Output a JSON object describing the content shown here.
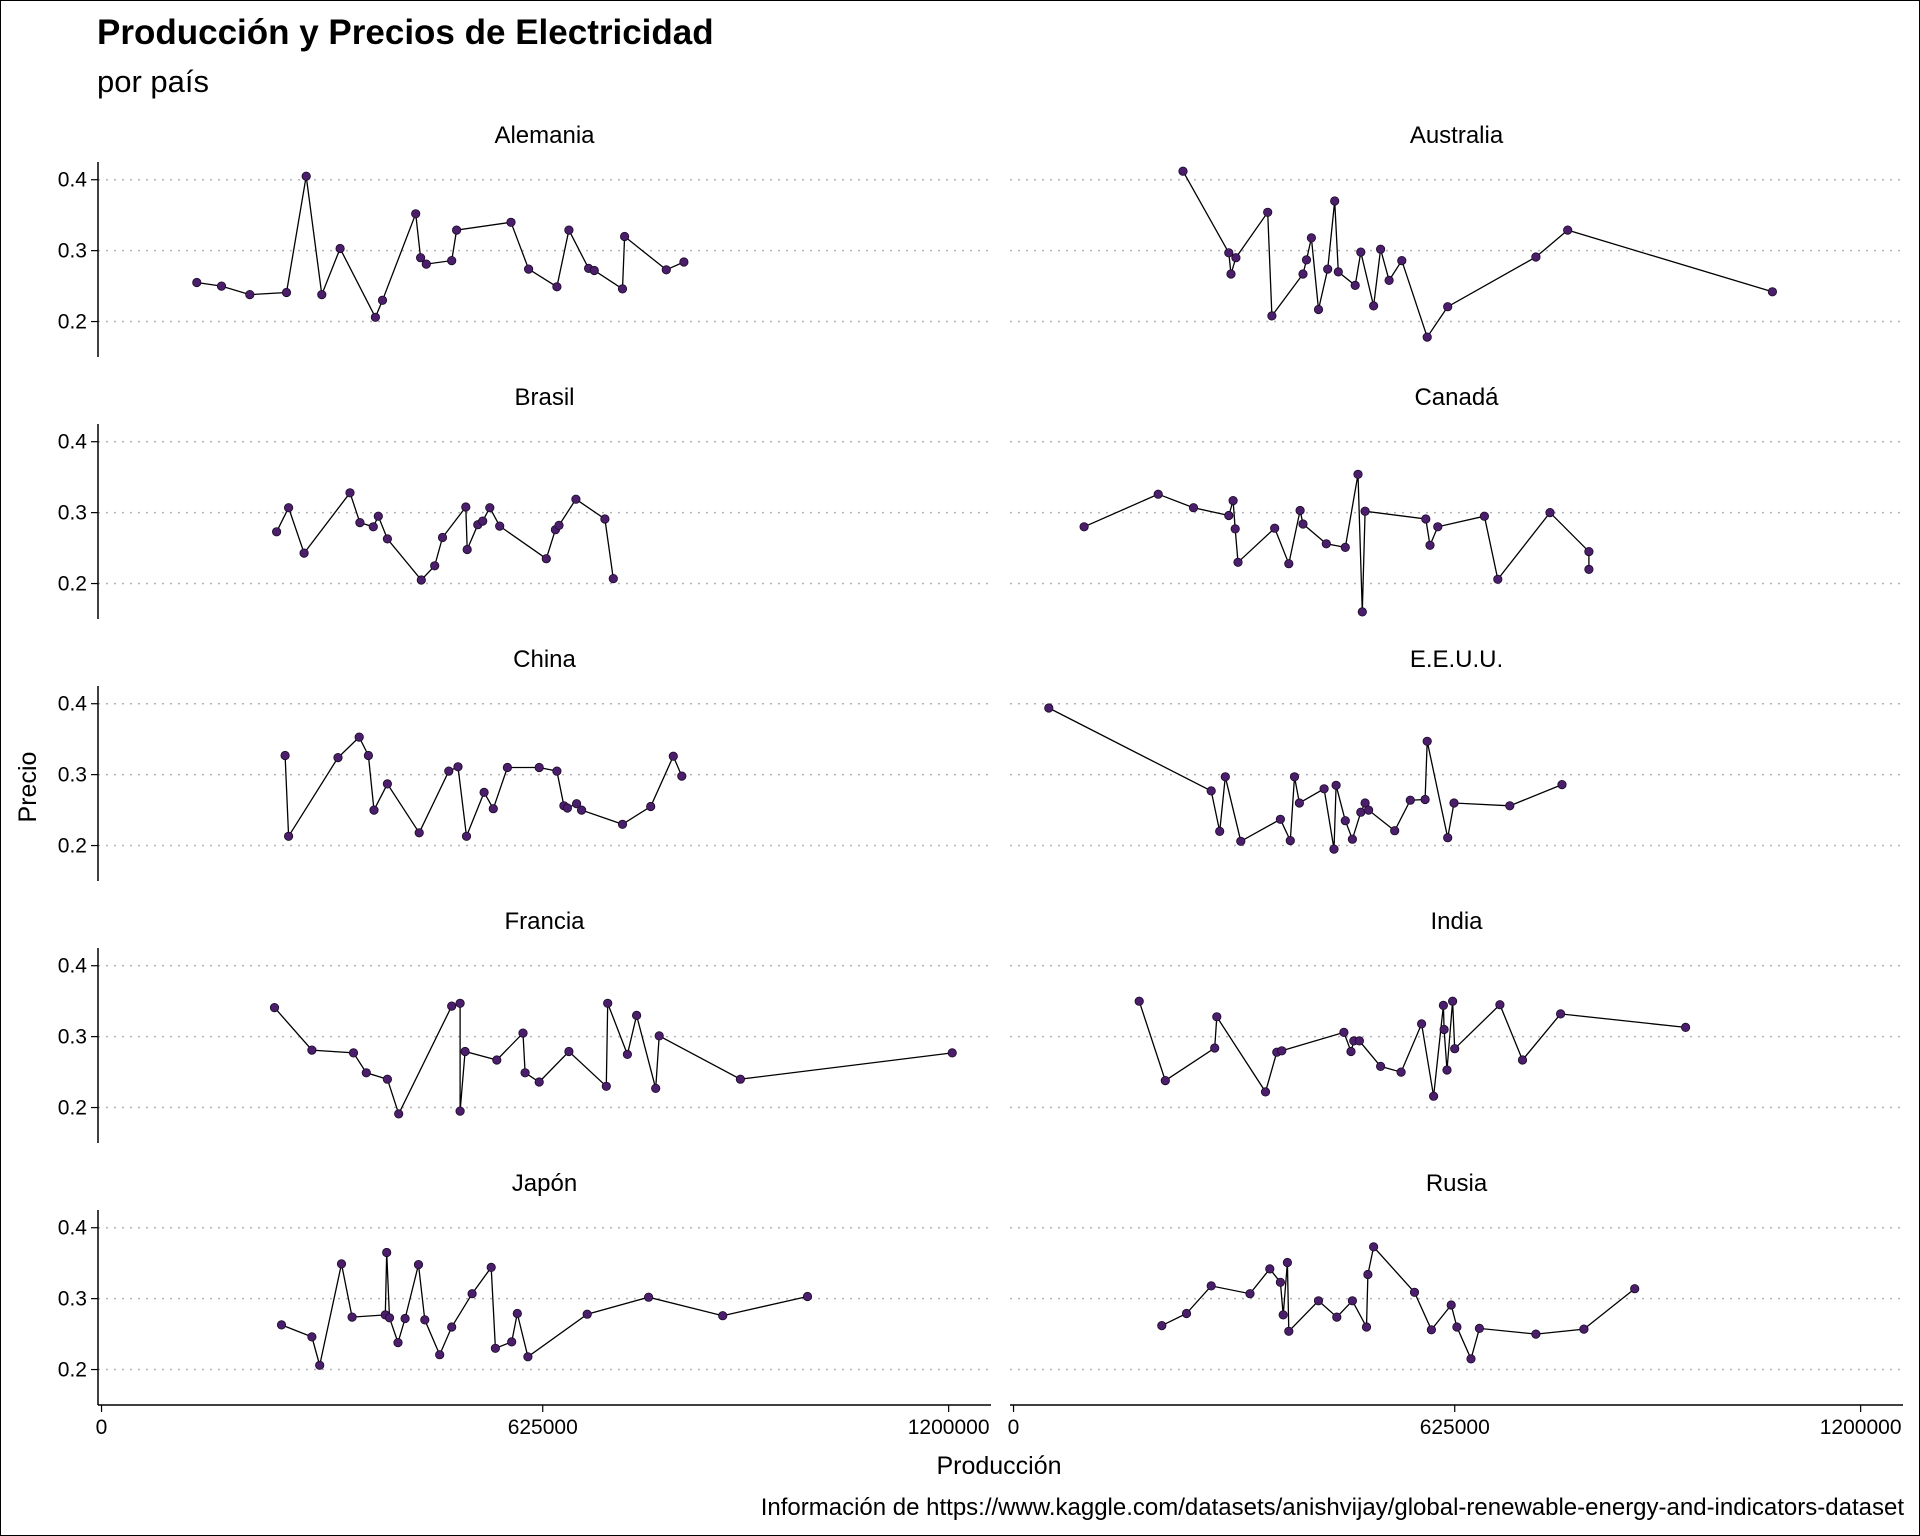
{
  "title": "Producción y Precios de Electricidad",
  "subtitle": "por país",
  "caption": "Información de https://www.kaggle.com/datasets/anishvijay/global-renewable-energy-and-indicators-dataset",
  "chart_data": {
    "type": "line",
    "facet_layout": "5 rows x 2 columns, shared x and y axes",
    "xlabel": "Producción",
    "ylabel": "Precio",
    "x_ticks": [
      0,
      625000,
      1200000
    ],
    "x_tick_labels": [
      "0",
      "625000",
      "1200000"
    ],
    "y_ticks": [
      0.2,
      0.3,
      0.4
    ],
    "y_tick_labels": [
      "0.2",
      "0.3",
      "0.4"
    ],
    "xlim": [
      -5000,
      1260000
    ],
    "ylim": [
      0.15,
      0.425
    ],
    "grid": "horizontal dotted major lines",
    "point_color": "#4B1E6B",
    "line_color": "#000000",
    "panels": [
      {
        "name": "Alemania",
        "points": [
          [
            135000,
            0.255
          ],
          [
            170000,
            0.25
          ],
          [
            210000,
            0.238
          ],
          [
            262000,
            0.241
          ],
          [
            290000,
            0.405
          ],
          [
            312000,
            0.238
          ],
          [
            338000,
            0.303
          ],
          [
            388000,
            0.206
          ],
          [
            398000,
            0.23
          ],
          [
            445000,
            0.352
          ],
          [
            452000,
            0.29
          ],
          [
            460000,
            0.281
          ],
          [
            496000,
            0.286
          ],
          [
            503000,
            0.329
          ],
          [
            580000,
            0.34
          ],
          [
            605000,
            0.274
          ],
          [
            645000,
            0.249
          ],
          [
            662000,
            0.329
          ],
          [
            690000,
            0.275
          ],
          [
            698000,
            0.272
          ],
          [
            738000,
            0.246
          ],
          [
            741000,
            0.32
          ],
          [
            800000,
            0.273
          ],
          [
            825000,
            0.284
          ]
        ]
      },
      {
        "name": "Australia",
        "points": [
          [
            240000,
            0.412
          ],
          [
            305000,
            0.297
          ],
          [
            308000,
            0.267
          ],
          [
            315000,
            0.29
          ],
          [
            360000,
            0.354
          ],
          [
            366000,
            0.208
          ],
          [
            410000,
            0.267
          ],
          [
            415000,
            0.287
          ],
          [
            422000,
            0.318
          ],
          [
            432000,
            0.217
          ],
          [
            445000,
            0.274
          ],
          [
            455000,
            0.37
          ],
          [
            460000,
            0.27
          ],
          [
            484000,
            0.251
          ],
          [
            492000,
            0.298
          ],
          [
            510000,
            0.222
          ],
          [
            520000,
            0.302
          ],
          [
            532000,
            0.258
          ],
          [
            550000,
            0.286
          ],
          [
            586000,
            0.178
          ],
          [
            615000,
            0.221
          ],
          [
            740000,
            0.291
          ],
          [
            785000,
            0.329
          ],
          [
            1075000,
            0.242
          ]
        ]
      },
      {
        "name": "Brasil",
        "points": [
          [
            248000,
            0.273
          ],
          [
            265000,
            0.307
          ],
          [
            287000,
            0.243
          ],
          [
            352000,
            0.328
          ],
          [
            366000,
            0.286
          ],
          [
            385000,
            0.28
          ],
          [
            392000,
            0.295
          ],
          [
            405000,
            0.263
          ],
          [
            453000,
            0.205
          ],
          [
            472000,
            0.225
          ],
          [
            483000,
            0.265
          ],
          [
            516000,
            0.308
          ],
          [
            518000,
            0.248
          ],
          [
            533000,
            0.283
          ],
          [
            540000,
            0.288
          ],
          [
            550000,
            0.307
          ],
          [
            564000,
            0.281
          ],
          [
            630000,
            0.235
          ],
          [
            643000,
            0.276
          ],
          [
            648000,
            0.282
          ],
          [
            672000,
            0.319
          ],
          [
            713000,
            0.291
          ],
          [
            725000,
            0.207
          ]
        ]
      },
      {
        "name": "Canadá",
        "points": [
          [
            100000,
            0.28
          ],
          [
            205000,
            0.326
          ],
          [
            255000,
            0.307
          ],
          [
            305000,
            0.296
          ],
          [
            311000,
            0.317
          ],
          [
            314000,
            0.277
          ],
          [
            318000,
            0.23
          ],
          [
            370000,
            0.278
          ],
          [
            390000,
            0.228
          ],
          [
            406000,
            0.303
          ],
          [
            410000,
            0.284
          ],
          [
            443000,
            0.256
          ],
          [
            470000,
            0.251
          ],
          [
            488000,
            0.354
          ],
          [
            494000,
            0.16
          ],
          [
            498000,
            0.302
          ],
          [
            584000,
            0.291
          ],
          [
            590000,
            0.254
          ],
          [
            601000,
            0.28
          ],
          [
            667000,
            0.295
          ],
          [
            686000,
            0.206
          ],
          [
            760000,
            0.3
          ],
          [
            815000,
            0.245
          ],
          [
            815000,
            0.22
          ]
        ]
      },
      {
        "name": "China",
        "points": [
          [
            260000,
            0.327
          ],
          [
            265000,
            0.213
          ],
          [
            335000,
            0.324
          ],
          [
            365000,
            0.353
          ],
          [
            378000,
            0.327
          ],
          [
            386000,
            0.25
          ],
          [
            405000,
            0.287
          ],
          [
            450000,
            0.218
          ],
          [
            492000,
            0.305
          ],
          [
            505000,
            0.311
          ],
          [
            517000,
            0.213
          ],
          [
            542000,
            0.275
          ],
          [
            555000,
            0.252
          ],
          [
            575000,
            0.31
          ],
          [
            620000,
            0.31
          ],
          [
            645000,
            0.305
          ],
          [
            655000,
            0.256
          ],
          [
            660000,
            0.253
          ],
          [
            673000,
            0.259
          ],
          [
            680000,
            0.25
          ],
          [
            738000,
            0.23
          ],
          [
            778000,
            0.255
          ],
          [
            810000,
            0.326
          ],
          [
            822000,
            0.298
          ]
        ]
      },
      {
        "name": "E.E.U.U.",
        "points": [
          [
            50000,
            0.394
          ],
          [
            280000,
            0.277
          ],
          [
            292000,
            0.22
          ],
          [
            300000,
            0.297
          ],
          [
            322000,
            0.206
          ],
          [
            378000,
            0.237
          ],
          [
            392000,
            0.207
          ],
          [
            398000,
            0.297
          ],
          [
            405000,
            0.26
          ],
          [
            440000,
            0.28
          ],
          [
            454000,
            0.195
          ],
          [
            457000,
            0.285
          ],
          [
            470000,
            0.235
          ],
          [
            480000,
            0.209
          ],
          [
            492000,
            0.247
          ],
          [
            498000,
            0.26
          ],
          [
            503000,
            0.25
          ],
          [
            540000,
            0.221
          ],
          [
            562000,
            0.264
          ],
          [
            583000,
            0.265
          ],
          [
            586000,
            0.347
          ],
          [
            615000,
            0.211
          ],
          [
            624000,
            0.26
          ],
          [
            703000,
            0.256
          ],
          [
            777000,
            0.286
          ]
        ]
      },
      {
        "name": "Francia",
        "points": [
          [
            245000,
            0.341
          ],
          [
            298000,
            0.281
          ],
          [
            357000,
            0.277
          ],
          [
            375000,
            0.249
          ],
          [
            405000,
            0.24
          ],
          [
            421000,
            0.191
          ],
          [
            496000,
            0.343
          ],
          [
            508000,
            0.347
          ],
          [
            508000,
            0.195
          ],
          [
            515000,
            0.279
          ],
          [
            560000,
            0.267
          ],
          [
            597000,
            0.305
          ],
          [
            600000,
            0.249
          ],
          [
            620000,
            0.236
          ],
          [
            662000,
            0.279
          ],
          [
            715000,
            0.23
          ],
          [
            717000,
            0.347
          ],
          [
            745000,
            0.275
          ],
          [
            758000,
            0.33
          ],
          [
            785000,
            0.227
          ],
          [
            790000,
            0.301
          ],
          [
            905000,
            0.24
          ],
          [
            1205000,
            0.277
          ]
        ]
      },
      {
        "name": "India",
        "points": [
          [
            178000,
            0.35
          ],
          [
            215000,
            0.238
          ],
          [
            285000,
            0.284
          ],
          [
            288000,
            0.328
          ],
          [
            357000,
            0.222
          ],
          [
            373000,
            0.278
          ],
          [
            380000,
            0.28
          ],
          [
            468000,
            0.306
          ],
          [
            478000,
            0.279
          ],
          [
            482000,
            0.294
          ],
          [
            490000,
            0.294
          ],
          [
            520000,
            0.258
          ],
          [
            549000,
            0.25
          ],
          [
            578000,
            0.318
          ],
          [
            595000,
            0.216
          ],
          [
            609000,
            0.344
          ],
          [
            610000,
            0.31
          ],
          [
            614000,
            0.253
          ],
          [
            622000,
            0.35
          ],
          [
            625000,
            0.283
          ],
          [
            689000,
            0.345
          ],
          [
            721000,
            0.267
          ],
          [
            775000,
            0.332
          ],
          [
            952000,
            0.313
          ]
        ]
      },
      {
        "name": "Japón",
        "points": [
          [
            255000,
            0.263
          ],
          [
            298000,
            0.246
          ],
          [
            309000,
            0.206
          ],
          [
            340000,
            0.349
          ],
          [
            355000,
            0.274
          ],
          [
            402000,
            0.277
          ],
          [
            404000,
            0.365
          ],
          [
            408000,
            0.273
          ],
          [
            420000,
            0.238
          ],
          [
            430000,
            0.272
          ],
          [
            449000,
            0.348
          ],
          [
            458000,
            0.27
          ],
          [
            479000,
            0.221
          ],
          [
            496000,
            0.26
          ],
          [
            525000,
            0.307
          ],
          [
            552000,
            0.344
          ],
          [
            558000,
            0.23
          ],
          [
            581000,
            0.239
          ],
          [
            589000,
            0.279
          ],
          [
            604000,
            0.218
          ],
          [
            688000,
            0.278
          ],
          [
            775000,
            0.302
          ],
          [
            880000,
            0.276
          ],
          [
            1000000,
            0.303
          ]
        ]
      },
      {
        "name": "Rusia",
        "points": [
          [
            210000,
            0.262
          ],
          [
            245000,
            0.279
          ],
          [
            280000,
            0.318
          ],
          [
            335000,
            0.307
          ],
          [
            363000,
            0.342
          ],
          [
            378000,
            0.323
          ],
          [
            382000,
            0.277
          ],
          [
            388000,
            0.351
          ],
          [
            390000,
            0.254
          ],
          [
            432000,
            0.297
          ],
          [
            458000,
            0.274
          ],
          [
            480000,
            0.297
          ],
          [
            500000,
            0.26
          ],
          [
            502000,
            0.334
          ],
          [
            510000,
            0.373
          ],
          [
            568000,
            0.309
          ],
          [
            592000,
            0.256
          ],
          [
            620000,
            0.291
          ],
          [
            628000,
            0.26
          ],
          [
            648000,
            0.215
          ],
          [
            660000,
            0.258
          ],
          [
            740000,
            0.25
          ],
          [
            808000,
            0.257
          ],
          [
            880000,
            0.314
          ]
        ]
      }
    ]
  }
}
